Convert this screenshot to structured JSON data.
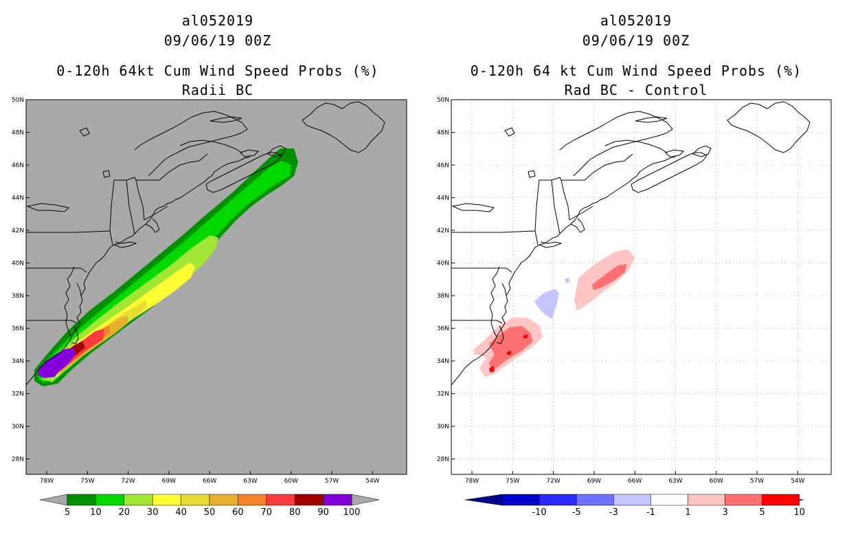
{
  "left_panel": {
    "storm_id": "al052019",
    "datetime": "09/06/19 00Z",
    "product": "0-120h 64kt Cum Wind Speed Probs (%)",
    "subtitle": "Radii BC",
    "background_color": "#a9a9a9"
  },
  "right_panel": {
    "storm_id": "al052019",
    "datetime": "09/06/19 00Z",
    "product": "0-120h 64 kt Cum Wind Speed Probs (%)",
    "subtitle": "Rad BC - Control",
    "background_color": "#ffffff"
  },
  "map_axes": {
    "lat_labels": [
      "50N",
      "48N",
      "46N",
      "44N",
      "42N",
      "40N",
      "38N",
      "36N",
      "34N",
      "32N",
      "30N",
      "28N"
    ],
    "lon_labels": [
      "78W",
      "75W",
      "72W",
      "69W",
      "66W",
      "63W",
      "60W",
      "57W",
      "54W"
    ]
  },
  "chart_data": [
    {
      "type": "heatmap",
      "title": "0-120h 64kt Cum Wind Speed Probs (%) Radii BC",
      "colorbar": {
        "levels": [
          "5",
          "10",
          "20",
          "30",
          "40",
          "50",
          "60",
          "70",
          "80",
          "90",
          "100"
        ],
        "colors": [
          "#009100",
          "#00d800",
          "#a0e632",
          "#ffff33",
          "#e6dc32",
          "#e6af2d",
          "#f08228",
          "#fa3c3c",
          "#a00000",
          "#8200dc"
        ]
      }
    },
    {
      "type": "heatmap",
      "title": "0-120h 64 kt Cum Wind Speed Probs (%) Rad BC - Control",
      "colorbar": {
        "levels": [
          "-10",
          "-5",
          "-3",
          "-1",
          "1",
          "3",
          "5",
          "10"
        ],
        "colors": [
          "#0000c8",
          "#2b2bff",
          "#7070ff",
          "#c4c4ff",
          "#ffffff",
          "#ffc4c4",
          "#ff7070",
          "#ff0000"
        ],
        "extend_low_color": "#00008c",
        "extend_high_color": "#8c0000"
      }
    }
  ]
}
